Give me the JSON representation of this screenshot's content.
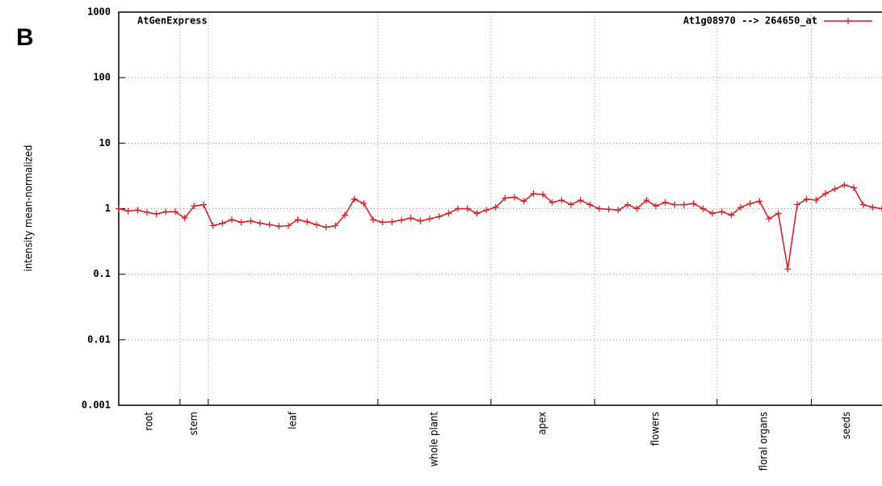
{
  "chart_data": {
    "type": "line",
    "panel_label": "B",
    "title": "AtGenExpress",
    "ylabel": "intensity mean-normalized",
    "yscale": "log",
    "ylim": [
      0.001,
      1000
    ],
    "yticks": [
      0.001,
      0.01,
      0.1,
      1,
      10,
      100,
      1000
    ],
    "xlim": [
      0,
      81
    ],
    "grid": true,
    "legend": "top-right",
    "group_bounds": [
      6.5,
      9.5,
      27.5,
      39.5,
      50.5,
      63.5,
      73.5
    ],
    "categories": [
      "root",
      "stem",
      "leaf",
      "whole plant",
      "apex",
      "flowers",
      "floral organs",
      "seeds"
    ],
    "x": [
      0,
      1,
      2,
      3,
      4,
      5,
      6,
      7,
      8,
      9,
      10,
      11,
      12,
      13,
      14,
      15,
      16,
      17,
      18,
      19,
      20,
      21,
      22,
      23,
      24,
      25,
      26,
      27,
      28,
      29,
      30,
      31,
      32,
      33,
      34,
      35,
      36,
      37,
      38,
      39,
      40,
      41,
      42,
      43,
      44,
      45,
      46,
      47,
      48,
      49,
      50,
      51,
      52,
      53,
      54,
      55,
      56,
      57,
      58,
      59,
      60,
      61,
      62,
      63,
      64,
      65,
      66,
      67,
      68,
      69,
      70,
      71,
      72,
      73,
      74,
      75,
      76,
      77,
      78,
      79,
      80,
      81
    ],
    "series": [
      {
        "name": "At1g08970 --> 264650_at",
        "color": "#e8141c",
        "values": [
          1.0,
          0.92,
          0.95,
          0.88,
          0.83,
          0.9,
          0.9,
          0.72,
          1.1,
          1.15,
          0.55,
          0.6,
          0.68,
          0.62,
          0.65,
          0.6,
          0.57,
          0.54,
          0.55,
          0.68,
          0.63,
          0.57,
          0.52,
          0.55,
          0.8,
          1.4,
          1.2,
          0.68,
          0.62,
          0.63,
          0.67,
          0.72,
          0.65,
          0.7,
          0.76,
          0.85,
          1.0,
          1.0,
          0.85,
          0.95,
          1.05,
          1.45,
          1.5,
          1.3,
          1.7,
          1.65,
          1.25,
          1.35,
          1.15,
          1.35,
          1.15,
          1.0,
          0.98,
          0.95,
          1.15,
          1.0,
          1.35,
          1.1,
          1.25,
          1.15,
          1.15,
          1.2,
          1.0,
          0.85,
          0.9,
          0.8,
          1.05,
          1.2,
          1.3,
          0.7,
          0.85,
          0.12,
          1.15,
          1.4,
          1.35,
          1.7,
          2.0,
          2.3,
          2.1,
          1.15,
          1.05,
          1.0
        ]
      }
    ]
  }
}
